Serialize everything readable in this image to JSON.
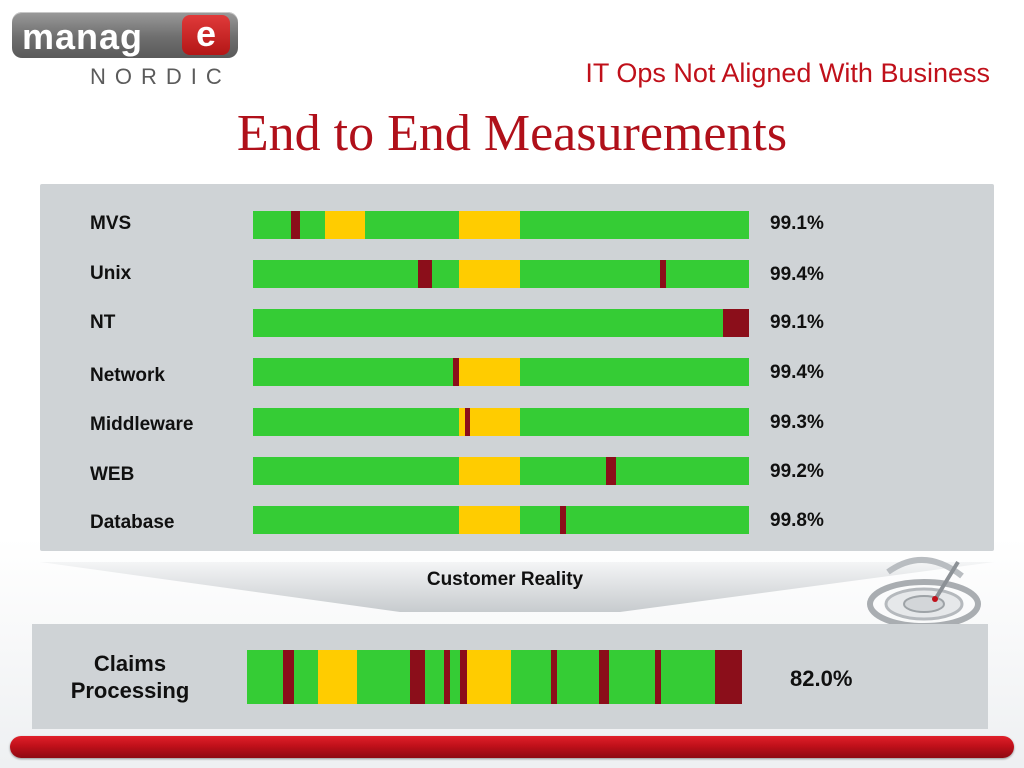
{
  "logo": {
    "word": "manag",
    "e": "e",
    "tagline": "NORDIC"
  },
  "subtitle": "IT Ops Not Aligned With Business",
  "title": "End to End Measurements",
  "colors": {
    "good": "#35cc35",
    "warning": "#ffcc00",
    "outage": "#8b0e1a",
    "accent": "#c0101a"
  },
  "rows": [
    {
      "label": "MVS",
      "value": "99.1%",
      "segments": [
        {
          "type": "red",
          "start": 0.076,
          "end": 0.095
        },
        {
          "type": "yellow",
          "start": 0.145,
          "end": 0.225
        },
        {
          "type": "yellow",
          "start": 0.415,
          "end": 0.537
        }
      ]
    },
    {
      "label": "Unix",
      "value": "99.4%",
      "segments": [
        {
          "type": "red",
          "start": 0.333,
          "end": 0.361
        },
        {
          "type": "yellow",
          "start": 0.415,
          "end": 0.537
        },
        {
          "type": "red",
          "start": 0.821,
          "end": 0.833
        }
      ]
    },
    {
      "label": "NT",
      "value": "99.1%",
      "segments": [
        {
          "type": "red",
          "start": 0.948,
          "end": 1.0
        }
      ]
    },
    {
      "label": "Network",
      "value": "99.4%",
      "segments": [
        {
          "type": "red",
          "start": 0.403,
          "end": 0.415
        },
        {
          "type": "yellow",
          "start": 0.415,
          "end": 0.537
        }
      ]
    },
    {
      "label": "Middleware",
      "value": "99.3%",
      "segments": [
        {
          "type": "yellow",
          "start": 0.415,
          "end": 0.537
        },
        {
          "type": "red",
          "start": 0.427,
          "end": 0.437
        }
      ]
    },
    {
      "label": "WEB",
      "value": "99.2%",
      "segments": [
        {
          "type": "yellow",
          "start": 0.415,
          "end": 0.537
        },
        {
          "type": "red",
          "start": 0.711,
          "end": 0.731
        }
      ]
    },
    {
      "label": "Database",
      "value": "99.8%",
      "segments": [
        {
          "type": "yellow",
          "start": 0.415,
          "end": 0.537
        },
        {
          "type": "red",
          "start": 0.619,
          "end": 0.631
        }
      ]
    }
  ],
  "funnel_label": "Customer Reality",
  "claims": {
    "label_line1": "Claims",
    "label_line2": "Processing",
    "value": "82.0%",
    "segments": [
      {
        "type": "red",
        "start": 0.073,
        "end": 0.095
      },
      {
        "type": "yellow",
        "start": 0.143,
        "end": 0.222
      },
      {
        "type": "red",
        "start": 0.329,
        "end": 0.36
      },
      {
        "type": "red",
        "start": 0.398,
        "end": 0.41
      },
      {
        "type": "red",
        "start": 0.43,
        "end": 0.444
      },
      {
        "type": "yellow",
        "start": 0.444,
        "end": 0.533
      },
      {
        "type": "red",
        "start": 0.614,
        "end": 0.626
      },
      {
        "type": "red",
        "start": 0.711,
        "end": 0.731
      },
      {
        "type": "red",
        "start": 0.824,
        "end": 0.836
      },
      {
        "type": "red",
        "start": 0.945,
        "end": 1.0
      }
    ]
  }
}
